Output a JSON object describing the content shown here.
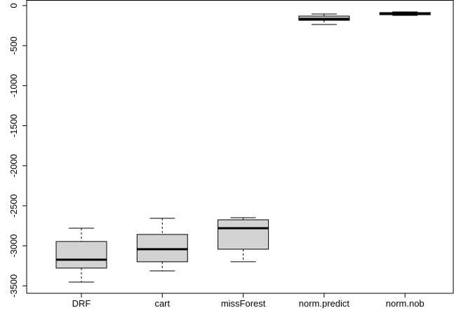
{
  "chart_data": {
    "type": "box",
    "categories": [
      "DRF",
      "cart",
      "missForest",
      "norm.predict",
      "norm.nob"
    ],
    "boxes": [
      {
        "min": -3453,
        "q1": -3278,
        "median": -3173,
        "q3": -2946,
        "max": -2780
      },
      {
        "min": -3313,
        "q1": -3199,
        "median": -3042,
        "q3": -2858,
        "max": -2657
      },
      {
        "min": -3199,
        "q1": -3042,
        "median": -2780,
        "q3": -2675,
        "max": -2649
      },
      {
        "min": -236,
        "q1": -184,
        "median": -166,
        "q3": -131,
        "max": -105
      },
      {
        "min": -122,
        "q1": -114,
        "median": -105,
        "q3": -87,
        "max": -79
      }
    ],
    "color": "#d3d3d3",
    "ylim": [
      -3593,
      70
    ],
    "yticks": [
      0,
      -500,
      -1000,
      -1500,
      -2000,
      -2500,
      -3000,
      -3500
    ]
  }
}
